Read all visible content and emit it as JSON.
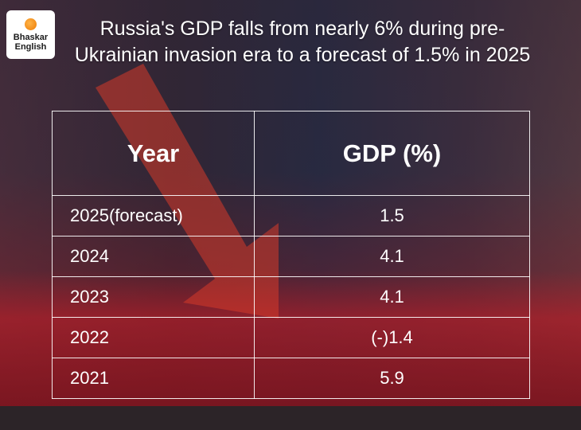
{
  "brand": {
    "line1": "Bhaskar",
    "line2": "English"
  },
  "title": "Russia's GDP falls from nearly 6% during pre-Ukrainian invasion era to a forecast of 1.5% in 2025",
  "colors": {
    "background": "#2a1f2c",
    "text": "#ffffff",
    "logo_dot": "#f28c18"
  },
  "chart_data": {
    "type": "table",
    "title": "Russia's GDP falls from nearly 6% during pre-Ukrainian invasion era to a forecast of 1.5% in 2025",
    "columns": [
      "Year",
      "GDP (%)"
    ],
    "rows": [
      {
        "year": "2025(forecast)",
        "gdp": "1.5"
      },
      {
        "year": "2024",
        "gdp": "4.1"
      },
      {
        "year": "2023",
        "gdp": "4.1"
      },
      {
        "year": "2022",
        "gdp": "(-)1.4"
      },
      {
        "year": "2021",
        "gdp": "5.9"
      }
    ]
  }
}
